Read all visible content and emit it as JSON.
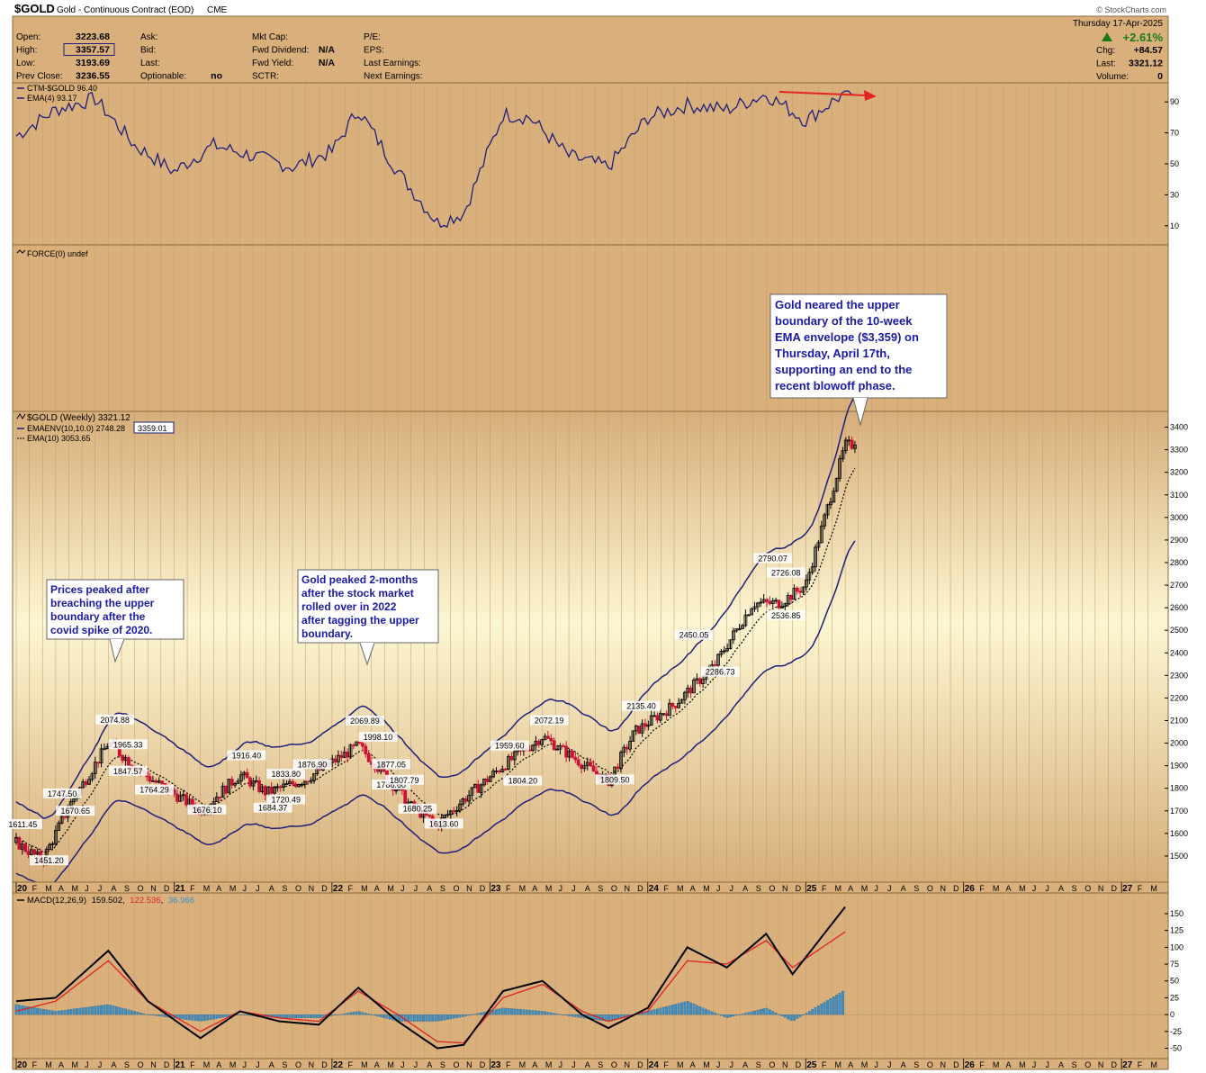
{
  "header": {
    "symbol": "$GOLD",
    "name": "Gold - Continuous Contract (EOD)",
    "exchange": "CME",
    "brand": "© StockCharts.com",
    "date": "Thursday  17-Apr-2025",
    "change_pct": "+2.61%",
    "fields": [
      {
        "label": "Open:",
        "value": "3223.68"
      },
      {
        "label": "High:",
        "value": "3357.57"
      },
      {
        "label": "Low:",
        "value": "3193.69"
      },
      {
        "label": "Prev Close:",
        "value": "3236.55"
      },
      {
        "label": "Ask:",
        "value": ""
      },
      {
        "label": "Bid:",
        "value": ""
      },
      {
        "label": "Last:",
        "value": ""
      },
      {
        "label": "Optionable:",
        "value": "no"
      },
      {
        "label": "Mkt Cap:",
        "value": ""
      },
      {
        "label": "Fwd Dividend:",
        "value": "N/A"
      },
      {
        "label": "Fwd Yield:",
        "value": "N/A"
      },
      {
        "label": "SCTR:",
        "value": ""
      },
      {
        "label": "P/E:",
        "value": ""
      },
      {
        "label": "EPS:",
        "value": ""
      },
      {
        "label": "Last Earnings:",
        "value": ""
      },
      {
        "label": "Next Earnings:",
        "value": ""
      }
    ],
    "right_fields": [
      {
        "label": "Chg:",
        "value": "+84.57"
      },
      {
        "label": "Last:",
        "value": "3321.12"
      },
      {
        "label": "Volume:",
        "value": "0"
      }
    ]
  },
  "colors": {
    "panel_bg": "#d9b07c",
    "main_bg_top": "#d6ae7a",
    "main_bg_mid": "#fcf6d2",
    "envelope": "#1f1f7a",
    "up_candle": "#000000",
    "down_candle": "#cc1133",
    "macd_line": "#000000",
    "signal_line": "#dd2222",
    "histogram": "#3b8fc8",
    "annotation_text": "#1a1aa6",
    "arrow": "#e52222"
  },
  "chart_data": [
    {
      "type": "line",
      "panel": "sentiment",
      "series": [
        {
          "name": "CTM-$GOLD 96.40",
          "x": [
            "2020-01",
            "2020-04",
            "2020-07",
            "2020-10",
            "2021-01",
            "2021-04",
            "2021-07",
            "2021-10",
            "2022-01",
            "2022-03",
            "2022-06",
            "2022-09",
            "2022-11",
            "2023-02",
            "2023-04",
            "2023-07",
            "2023-10",
            "2024-01",
            "2024-04",
            "2024-07",
            "2024-10",
            "2025-01",
            "2025-04"
          ],
          "values": [
            68,
            85,
            92,
            62,
            45,
            62,
            55,
            48,
            58,
            85,
            45,
            12,
            18,
            82,
            80,
            55,
            48,
            80,
            88,
            85,
            95,
            78,
            96
          ]
        },
        {
          "name": "EMA(4) 93.17",
          "x": [
            "2025-04"
          ],
          "values": [
            93
          ]
        }
      ],
      "ylim": [
        0,
        100
      ],
      "yticks": [
        10,
        30,
        50,
        70,
        90
      ]
    },
    {
      "type": "line",
      "panel": "force",
      "series": [
        {
          "name": "FORCE(0) undef",
          "values": []
        }
      ]
    },
    {
      "type": "candlestick",
      "panel": "price",
      "title": "$GOLD (Weekly) 3321.12",
      "legend": [
        "EMAENV(10,10.0) 2748.28",
        "3359.01",
        "EMA(10) 3053.65"
      ],
      "x": [
        "2020-01",
        "2020-03",
        "2020-05",
        "2020-08",
        "2020-11",
        "2021-03",
        "2021-06",
        "2021-08",
        "2021-11",
        "2022-03",
        "2022-05",
        "2022-07",
        "2022-09",
        "2022-11",
        "2023-02",
        "2023-05",
        "2023-07",
        "2023-10",
        "2023-12",
        "2024-03",
        "2024-06",
        "2024-09",
        "2024-11",
        "2025-01",
        "2025-04"
      ],
      "close": [
        1560,
        1480,
        1720,
        2000,
        1850,
        1700,
        1860,
        1780,
        1840,
        1990,
        1860,
        1720,
        1640,
        1750,
        1900,
        2030,
        1950,
        1830,
        2050,
        2170,
        2340,
        2620,
        2620,
        2700,
        3321
      ],
      "ylim": [
        1400,
        3450
      ],
      "yticks": [
        1500,
        1600,
        1700,
        1800,
        1900,
        2000,
        2100,
        2200,
        2300,
        2400,
        2500,
        2600,
        2700,
        2800,
        2900,
        3000,
        3100,
        3200,
        3300,
        3400
      ],
      "labels": [
        {
          "x": "2020-01",
          "y": 1611.45,
          "text": "1611.45"
        },
        {
          "x": "2020-03",
          "y": 1451.2,
          "text": "1451.20"
        },
        {
          "x": "2020-04",
          "y": 1747.5,
          "text": "1747.50"
        },
        {
          "x": "2020-05",
          "y": 1670.65,
          "text": "1670.65"
        },
        {
          "x": "2020-08",
          "y": 2074.88,
          "text": "2074.88"
        },
        {
          "x": "2020-09",
          "y": 1965.33,
          "text": "1965.33"
        },
        {
          "x": "2020-09",
          "y": 1847.57,
          "text": "1847.57"
        },
        {
          "x": "2020-11",
          "y": 1764.29,
          "text": "1764.29"
        },
        {
          "x": "2021-03",
          "y": 1676.1,
          "text": "1676.10"
        },
        {
          "x": "2021-06",
          "y": 1916.4,
          "text": "1916.40"
        },
        {
          "x": "2021-08",
          "y": 1684.37,
          "text": "1684.37"
        },
        {
          "x": "2021-09",
          "y": 1833.8,
          "text": "1833.80"
        },
        {
          "x": "2021-09",
          "y": 1720.49,
          "text": "1720.49"
        },
        {
          "x": "2021-11",
          "y": 1876.9,
          "text": "1876.90"
        },
        {
          "x": "2022-03",
          "y": 2069.89,
          "text": "2069.89"
        },
        {
          "x": "2022-04",
          "y": 1998.1,
          "text": "1998.10"
        },
        {
          "x": "2022-05",
          "y": 1877.05,
          "text": "1877.05"
        },
        {
          "x": "2022-05",
          "y": 1786.6,
          "text": "1786.60"
        },
        {
          "x": "2022-06",
          "y": 1807.79,
          "text": "1807.79"
        },
        {
          "x": "2022-07",
          "y": 1680.25,
          "text": "1680.25"
        },
        {
          "x": "2022-09",
          "y": 1613.6,
          "text": "1613.60"
        },
        {
          "x": "2023-02",
          "y": 1959.6,
          "text": "1959.60"
        },
        {
          "x": "2023-03",
          "y": 1804.2,
          "text": "1804.20"
        },
        {
          "x": "2023-05",
          "y": 2072.19,
          "text": "2072.19"
        },
        {
          "x": "2023-10",
          "y": 1809.5,
          "text": "1809.50"
        },
        {
          "x": "2023-12",
          "y": 2135.4,
          "text": "2135.40"
        },
        {
          "x": "2024-04",
          "y": 2450.05,
          "text": "2450.05"
        },
        {
          "x": "2024-06",
          "y": 2286.73,
          "text": "2286.73"
        },
        {
          "x": "2024-10",
          "y": 2790.07,
          "text": "2790.07"
        },
        {
          "x": "2024-11",
          "y": 2726.08,
          "text": "2726.08"
        },
        {
          "x": "2024-11",
          "y": 2536.85,
          "text": "2536.85"
        }
      ]
    },
    {
      "type": "line",
      "panel": "macd",
      "title": "MACD(12,26,9)",
      "values_text": [
        "159.502",
        "122.536",
        "36.966"
      ],
      "x": [
        "2020-01",
        "2020-04",
        "2020-08",
        "2020-11",
        "2021-03",
        "2021-06",
        "2021-09",
        "2021-12",
        "2022-03",
        "2022-06",
        "2022-09",
        "2022-11",
        "2023-02",
        "2023-05",
        "2023-08",
        "2023-10",
        "2024-01",
        "2024-04",
        "2024-07",
        "2024-10",
        "2024-12",
        "2025-04"
      ],
      "series": [
        {
          "name": "MACD",
          "values": [
            20,
            25,
            95,
            20,
            -35,
            5,
            -10,
            -15,
            40,
            -10,
            -50,
            -45,
            35,
            50,
            0,
            -20,
            10,
            100,
            70,
            120,
            60,
            160
          ]
        },
        {
          "name": "Signal",
          "values": [
            5,
            20,
            80,
            20,
            -25,
            5,
            -5,
            -10,
            35,
            0,
            -40,
            -42,
            25,
            45,
            5,
            -10,
            5,
            80,
            75,
            110,
            70,
            123
          ]
        },
        {
          "name": "Histogram",
          "values": [
            15,
            5,
            15,
            0,
            -10,
            0,
            -5,
            -5,
            5,
            -10,
            -10,
            -3,
            10,
            5,
            -5,
            -10,
            5,
            20,
            -5,
            10,
            -10,
            37
          ]
        }
      ],
      "ylim": [
        -60,
        170
      ],
      "yticks": [
        -50,
        -25,
        0,
        25,
        50,
        75,
        100,
        125,
        150
      ]
    }
  ],
  "x_axis": {
    "labels": [
      "20",
      "F",
      "M",
      "A",
      "M",
      "J",
      "J",
      "A",
      "S",
      "O",
      "N",
      "D",
      "21",
      "F",
      "M",
      "A",
      "M",
      "J",
      "J",
      "A",
      "S",
      "O",
      "N",
      "D",
      "22",
      "F",
      "M",
      "A",
      "M",
      "J",
      "J",
      "A",
      "S",
      "O",
      "N",
      "D",
      "23",
      "F",
      "M",
      "A",
      "M",
      "J",
      "J",
      "A",
      "S",
      "O",
      "N",
      "D",
      "24",
      "F",
      "M",
      "A",
      "M",
      "J",
      "J",
      "A",
      "S",
      "O",
      "N",
      "D",
      "25",
      "F",
      "M",
      "A",
      "M",
      "J",
      "J",
      "A",
      "S",
      "O",
      "N",
      "D",
      "26",
      "F",
      "M",
      "A",
      "M",
      "J",
      "J",
      "A",
      "S",
      "O",
      "N",
      "D",
      "27",
      "F",
      "M"
    ]
  },
  "annotations": [
    {
      "id": "a1",
      "lines": [
        "Prices peaked after",
        "breaching the upper",
        "boundary after the",
        "covid spike of 2020."
      ]
    },
    {
      "id": "a2",
      "lines": [
        "Gold peaked 2-months",
        "after the stock market",
        "rolled over in 2022",
        "after tagging the upper",
        "boundary."
      ]
    },
    {
      "id": "a3",
      "lines": [
        "Gold neared the upper",
        "boundary of the 10-week",
        "EMA envelope ($3,359) on",
        "Thursday, April 17th,",
        "supporting an end to the",
        "recent blowoff phase."
      ]
    }
  ]
}
